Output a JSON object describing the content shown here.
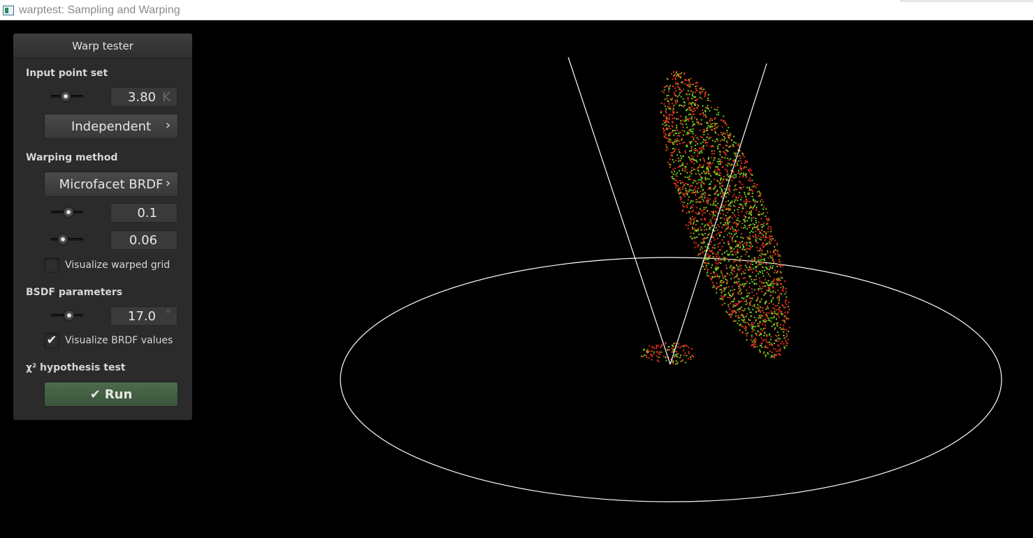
{
  "window": {
    "title": "warptest: Sampling and Warping"
  },
  "panel": {
    "title": "Warp tester",
    "input_point_set": {
      "label": "Input point set",
      "slider_fraction": 0.45,
      "value": "3.80",
      "unit": "K",
      "mode_button": "Independent"
    },
    "warping_method": {
      "label": "Warping method",
      "method_button": "Microfacet BRDF",
      "param1": {
        "slider_fraction": 0.55,
        "value": "0.1"
      },
      "param2": {
        "slider_fraction": 0.36,
        "value": "0.06"
      },
      "visualize_grid": {
        "label": "Visualize warped grid",
        "checked": false
      }
    },
    "bsdf_parameters": {
      "label": "BSDF parameters",
      "angle": {
        "slider_fraction": 0.57,
        "value": "17.0",
        "unit": "°"
      },
      "visualize_brdf": {
        "label": "Visualize BRDF values",
        "checked": true
      }
    },
    "hypothesis_test": {
      "label": "χ² hypothesis test",
      "run_button": "Run",
      "run_icon": "check-icon"
    }
  },
  "icons": {
    "chevron": "chevron-right-icon",
    "check": "check-icon",
    "app": "app-window-icon"
  },
  "colors": {
    "background": "#000000",
    "panel": "#2b2b2b",
    "run_button": "#4d6b4d",
    "point_red": "#e8321e",
    "point_green": "#6fd21e",
    "lines": "#ffffff"
  }
}
